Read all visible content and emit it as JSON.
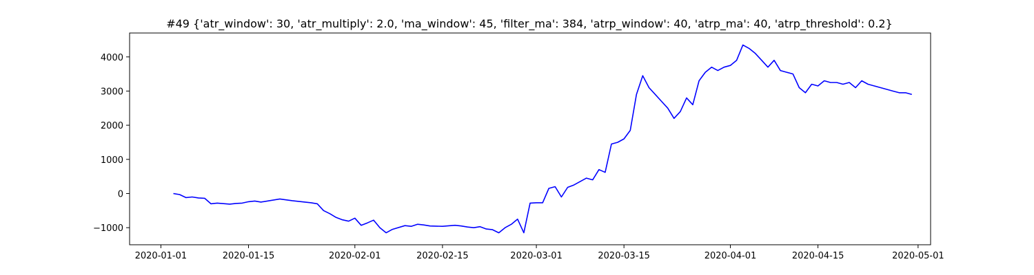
{
  "chart_data": {
    "type": "line",
    "title": "#49 {'atr_window': 30, 'atr_multiply': 2.0, 'ma_window': 45, 'filter_ma': 384, 'atrp_window': 40, 'atrp_ma': 40, 'atrp_threshold': 0.2}",
    "xlabel": "",
    "ylabel": "",
    "xlim": [
      "2019-12-27",
      "2020-05-03"
    ],
    "ylim": [
      -1500,
      4700
    ],
    "grid": false,
    "x_ticks": [
      "2020-01-01",
      "2020-01-15",
      "2020-02-01",
      "2020-02-15",
      "2020-03-01",
      "2020-03-15",
      "2020-04-01",
      "2020-04-15",
      "2020-05-01"
    ],
    "y_ticks": [
      -1000,
      0,
      1000,
      2000,
      3000,
      4000
    ],
    "y_tick_labels": [
      "−1000",
      "0",
      "1000",
      "2000",
      "3000",
      "4000"
    ],
    "line_color": "#0000ff",
    "series": [
      {
        "x": [
          "2020-01-03",
          "2020-01-04",
          "2020-01-05",
          "2020-01-06",
          "2020-01-07",
          "2020-01-08",
          "2020-01-09",
          "2020-01-10",
          "2020-01-12",
          "2020-01-13",
          "2020-01-14",
          "2020-01-15",
          "2020-01-16",
          "2020-01-17",
          "2020-01-20",
          "2020-01-22",
          "2020-01-23",
          "2020-01-24",
          "2020-01-25",
          "2020-01-26",
          "2020-01-27",
          "2020-01-28",
          "2020-01-29",
          "2020-01-30",
          "2020-01-31",
          "2020-02-01",
          "2020-02-02",
          "2020-02-03",
          "2020-02-04",
          "2020-02-05",
          "2020-02-06",
          "2020-02-07",
          "2020-02-09",
          "2020-02-10",
          "2020-02-11",
          "2020-02-12",
          "2020-02-13",
          "2020-02-15",
          "2020-02-17",
          "2020-02-18",
          "2020-02-19",
          "2020-02-20",
          "2020-02-21",
          "2020-02-22",
          "2020-02-23",
          "2020-02-24",
          "2020-02-25",
          "2020-02-26",
          "2020-02-27",
          "2020-02-28",
          "2020-02-29",
          "2020-03-01",
          "2020-03-02",
          "2020-03-03",
          "2020-03-04",
          "2020-03-05",
          "2020-03-06",
          "2020-03-07",
          "2020-03-08",
          "2020-03-09",
          "2020-03-10",
          "2020-03-11",
          "2020-03-12",
          "2020-03-13",
          "2020-03-14",
          "2020-03-15",
          "2020-03-16",
          "2020-03-17",
          "2020-03-18",
          "2020-03-19",
          "2020-03-20",
          "2020-03-21",
          "2020-03-22",
          "2020-03-23",
          "2020-03-24",
          "2020-03-25",
          "2020-03-26",
          "2020-03-27",
          "2020-03-28",
          "2020-03-29",
          "2020-03-30",
          "2020-03-31",
          "2020-04-01",
          "2020-04-02",
          "2020-04-03",
          "2020-04-04",
          "2020-04-05",
          "2020-04-06",
          "2020-04-07",
          "2020-04-08",
          "2020-04-09",
          "2020-04-10",
          "2020-04-11",
          "2020-04-12",
          "2020-04-13",
          "2020-04-14",
          "2020-04-15",
          "2020-04-16",
          "2020-04-17",
          "2020-04-18",
          "2020-04-19",
          "2020-04-20",
          "2020-04-21",
          "2020-04-22",
          "2020-04-23",
          "2020-04-24",
          "2020-04-25",
          "2020-04-26",
          "2020-04-27",
          "2020-04-28",
          "2020-04-29",
          "2020-04-30"
        ],
        "y": [
          0,
          -30,
          -120,
          -100,
          -130,
          -140,
          -300,
          -280,
          -310,
          -290,
          -280,
          -240,
          -220,
          -250,
          -160,
          -210,
          -230,
          -250,
          -270,
          -300,
          -500,
          -590,
          -700,
          -770,
          -810,
          -720,
          -930,
          -860,
          -780,
          -1000,
          -1150,
          -1050,
          -940,
          -960,
          -900,
          -920,
          -950,
          -960,
          -930,
          -950,
          -980,
          -1000,
          -970,
          -1040,
          -1060,
          -1150,
          -1000,
          -900,
          -750,
          -1150,
          -280,
          -270,
          -270,
          150,
          200,
          -100,
          180,
          250,
          350,
          450,
          400,
          700,
          620,
          1450,
          1500,
          1600,
          1850,
          2900,
          3450,
          3100,
          2900,
          2700,
          2500,
          2200,
          2400,
          2800,
          2600,
          3300,
          3550,
          3700,
          3600,
          3700,
          3750,
          3900,
          4350,
          4250,
          4100,
          3900,
          3700,
          3900,
          3600,
          3550,
          3500,
          3100,
          2950,
          3200,
          3150,
          3300,
          3250,
          3250,
          3200,
          3250,
          3100,
          3300,
          3200,
          3150,
          3100,
          3050,
          3000,
          2950,
          2950,
          2900
        ]
      }
    ]
  }
}
